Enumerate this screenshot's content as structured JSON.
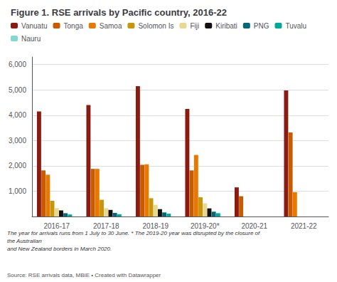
{
  "chart_data": {
    "type": "bar",
    "title": "Figure 1. RSE arrivals by Pacific country, 2016-22",
    "categories": [
      "2016-17",
      "2017-18",
      "2018-19",
      "2019-20*",
      "2020-21",
      "2021-22"
    ],
    "series": [
      {
        "name": "Vanuatu",
        "color": "#8B1A10",
        "values": [
          4150,
          4400,
          5150,
          4250,
          1150,
          4980
        ]
      },
      {
        "name": "Tonga",
        "color": "#C85A00",
        "values": [
          1820,
          1880,
          2040,
          1820,
          800,
          3320
        ]
      },
      {
        "name": "Samoa",
        "color": "#E87800",
        "values": [
          1650,
          1880,
          2060,
          2430,
          0,
          960
        ]
      },
      {
        "name": "Solomon Is",
        "color": "#C8960A",
        "values": [
          620,
          660,
          720,
          760,
          0,
          0
        ]
      },
      {
        "name": "Fiji",
        "color": "#E8D890",
        "values": [
          330,
          330,
          460,
          520,
          0,
          0
        ]
      },
      {
        "name": "Kiribati",
        "color": "#111111",
        "values": [
          240,
          260,
          290,
          320,
          0,
          0
        ]
      },
      {
        "name": "PNG",
        "color": "#006878",
        "values": [
          130,
          140,
          160,
          190,
          0,
          0
        ]
      },
      {
        "name": "Tuvalu",
        "color": "#00A898",
        "values": [
          80,
          90,
          110,
          130,
          0,
          0
        ]
      },
      {
        "name": "Nauru",
        "color": "#80D8D0",
        "values": [
          0,
          0,
          0,
          0,
          0,
          0
        ]
      }
    ],
    "ylim": [
      0,
      6300
    ],
    "yticks": [
      {
        "value": 1000,
        "label": "1,000"
      },
      {
        "value": 2000,
        "label": "2,000"
      },
      {
        "value": 3000,
        "label": "3,000"
      },
      {
        "value": 4000,
        "label": "4,000"
      },
      {
        "value": 5000,
        "label": "5,000"
      },
      {
        "value": 6000,
        "label": "6,000"
      }
    ],
    "grid": true,
    "legend": "upper left",
    "annotations": [
      "The year for arrivals runs from 1 July to 30 June. * The 2019-20 year was disrupted by the closure of the Australian\nand New Zealand borders in March 2020.",
      "Source: RSE arrivals data, MBIE • Created with Datawrapper"
    ]
  }
}
